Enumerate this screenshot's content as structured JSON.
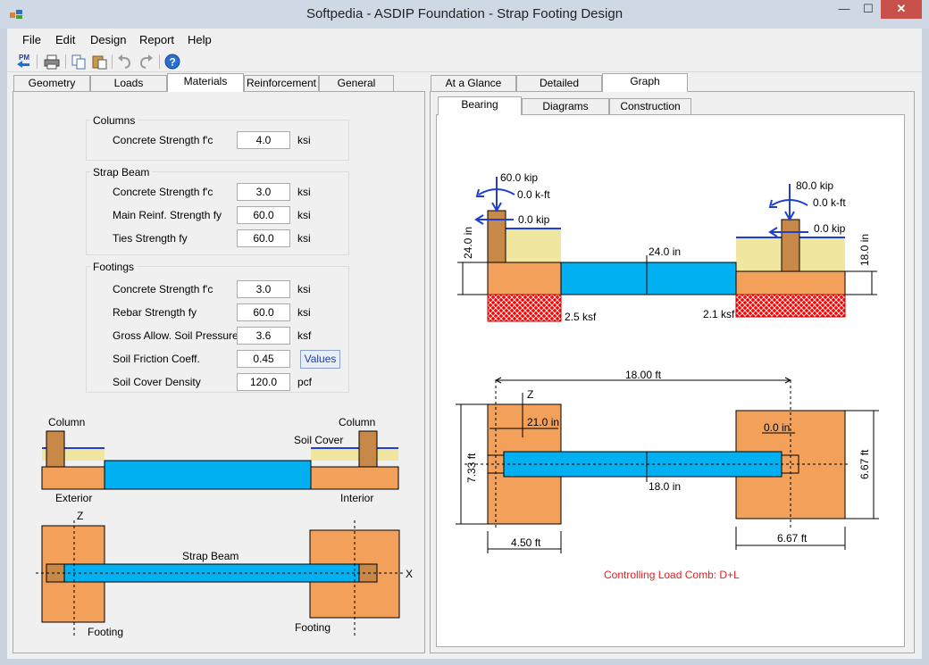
{
  "window": {
    "title": "Softpedia - ASDIP Foundation - Strap Footing Design"
  },
  "menu": [
    "File",
    "Edit",
    "Design",
    "Report",
    "Help"
  ],
  "toolbar": {
    "pm_label": "PM"
  },
  "left_tabs": [
    "Geometry",
    "Loads",
    "Materials",
    "Reinforcement",
    "General"
  ],
  "right_tabs": [
    "At a Glance",
    "Detailed",
    "Graph"
  ],
  "sub_tabs": [
    "Bearing",
    "Diagrams",
    "Construction"
  ],
  "materials": {
    "columns": {
      "title": "Columns",
      "rows": [
        {
          "label": "Concrete Strength  f'c",
          "value": "4.0",
          "unit": "ksi"
        }
      ]
    },
    "strap": {
      "title": "Strap Beam",
      "rows": [
        {
          "label": "Concrete Strength  f'c",
          "value": "3.0",
          "unit": "ksi"
        },
        {
          "label": "Main Reinf. Strength  fy",
          "value": "60.0",
          "unit": "ksi"
        },
        {
          "label": "Ties Strength  fy",
          "value": "60.0",
          "unit": "ksi"
        }
      ]
    },
    "footings": {
      "title": "Footings",
      "rows": [
        {
          "label": "Concrete Strength  f'c",
          "value": "3.0",
          "unit": "ksi"
        },
        {
          "label": "Rebar Strength  fy",
          "value": "60.0",
          "unit": "ksi"
        },
        {
          "label": "Gross Allow. Soil Pressure",
          "value": "3.6",
          "unit": "ksf"
        },
        {
          "label": "Soil Friction Coeff.",
          "value": "0.45",
          "unit": ""
        },
        {
          "label": "Soil Cover Density",
          "value": "120.0",
          "unit": "pcf"
        }
      ],
      "values_button": "Values"
    }
  },
  "schematic": {
    "column_left": "Column",
    "column_right": "Column",
    "soil_cover": "Soil Cover",
    "exterior": "Exterior",
    "interior": "Interior",
    "z_axis": "Z",
    "x_axis": "X",
    "strap_beam": "Strap Beam",
    "footing_left": "Footing",
    "footing_right": "Footing"
  },
  "graph": {
    "left_vertical_load": "60.0 kip",
    "left_moment": "0.0 k-ft",
    "left_horizontal": "0.0 kip",
    "right_vertical_load": "80.0 kip",
    "right_moment": "0.0 k-ft",
    "right_horizontal": "0.0 kip",
    "left_depth": "24.0 in",
    "beam_depth": "24.0 in",
    "right_depth": "18.0 in",
    "left_bearing": "2.5 ksf",
    "right_bearing": "2.1 ksf",
    "plan_spacing": "18.00 ft",
    "plan_z": "Z",
    "left_offset": "21.0 in",
    "right_offset": "0.0 in",
    "beam_width": "18.0 in",
    "left_length": "7.33 ft",
    "right_length": "6.67 ft",
    "left_width": "4.50 ft",
    "right_width": "6.67 ft",
    "controlling": "Controlling Load Comb: D+L"
  },
  "colors": {
    "footing": "#f2a05a",
    "column": "#c88848",
    "beam": "#00b0f0",
    "soil": "#f0e6a0",
    "bearing": "#ff0000",
    "load_arrow": "#1e3fd0",
    "controlling_text": "#e02020"
  }
}
